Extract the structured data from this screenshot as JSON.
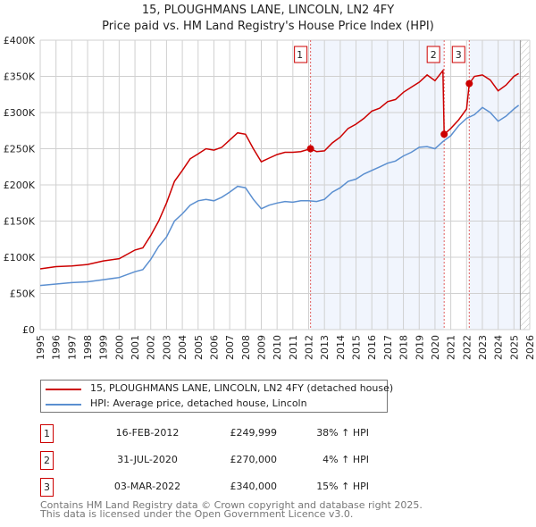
{
  "chart_data": {
    "type": "line",
    "title": "15, PLOUGHMANS LANE, LINCOLN, LN2 4FY",
    "subtitle": "Price paid vs. HM Land Registry's House Price Index (HPI)",
    "xlim": [
      1995,
      2026
    ],
    "ylim": [
      0,
      400000
    ],
    "x_ticks": [
      "1995",
      "1996",
      "1997",
      "1998",
      "1999",
      "2000",
      "2001",
      "2002",
      "2003",
      "2004",
      "2005",
      "2006",
      "2007",
      "2008",
      "2009",
      "2010",
      "2011",
      "2012",
      "2013",
      "2014",
      "2015",
      "2016",
      "2017",
      "2018",
      "2019",
      "2020",
      "2021",
      "2022",
      "2023",
      "2024",
      "2025",
      "2026"
    ],
    "y_ticks": [
      {
        "v": 0,
        "label": "£0"
      },
      {
        "v": 50000,
        "label": "£50K"
      },
      {
        "v": 100000,
        "label": "£100K"
      },
      {
        "v": 150000,
        "label": "£150K"
      },
      {
        "v": 200000,
        "label": "£200K"
      },
      {
        "v": 250000,
        "label": "£250K"
      },
      {
        "v": 300000,
        "label": "£300K"
      },
      {
        "v": 350000,
        "label": "£350K"
      },
      {
        "v": 400000,
        "label": "£400K"
      }
    ],
    "grid": true,
    "series": [
      {
        "name": "15, PLOUGHMANS LANE, LINCOLN, LN2 4FY (detached house)",
        "color": "#cc0000",
        "x": [
          1995,
          1996,
          1997,
          1998,
          1999,
          2000,
          2001,
          2001.5,
          2002,
          2002.5,
          2003,
          2003.5,
          2004,
          2004.5,
          2005,
          2005.5,
          2006,
          2006.5,
          2007,
          2007.5,
          2008,
          2008.5,
          2009,
          2009.5,
          2010,
          2010.5,
          2011,
          2011.5,
          2012.12,
          2012.5,
          2013,
          2013.5,
          2014,
          2014.5,
          2015,
          2015.5,
          2016,
          2016.5,
          2017,
          2017.5,
          2018,
          2018.5,
          2019,
          2019.5,
          2020,
          2020.5,
          2020.58,
          2021,
          2021.5,
          2022,
          2022.17,
          2022.5,
          2023,
          2023.5,
          2024,
          2024.5,
          2025,
          2025.3
        ],
        "y": [
          84000,
          87000,
          88000,
          90000,
          95000,
          98000,
          110000,
          113000,
          130000,
          150000,
          175000,
          205000,
          220000,
          236000,
          243000,
          250000,
          248000,
          252000,
          262000,
          272000,
          270000,
          250000,
          232000,
          237000,
          242000,
          245000,
          245000,
          246000,
          249999,
          246000,
          247000,
          258000,
          266000,
          278000,
          284000,
          292000,
          302000,
          306000,
          315000,
          318000,
          328000,
          335000,
          342000,
          352000,
          344000,
          358000,
          270000,
          278000,
          290000,
          305000,
          340000,
          350000,
          352000,
          345000,
          330000,
          338000,
          350000,
          354000
        ]
      },
      {
        "name": "HPI: Average price, detached house, Lincoln",
        "color": "#5b8fd0",
        "x": [
          1995,
          1996,
          1997,
          1998,
          1999,
          2000,
          2001,
          2001.5,
          2002,
          2002.5,
          2003,
          2003.5,
          2004,
          2004.5,
          2005,
          2005.5,
          2006,
          2006.5,
          2007,
          2007.5,
          2008,
          2008.5,
          2009,
          2009.5,
          2010,
          2010.5,
          2011,
          2011.5,
          2012,
          2012.5,
          2013,
          2013.5,
          2014,
          2014.5,
          2015,
          2015.5,
          2016,
          2016.5,
          2017,
          2017.5,
          2018,
          2018.5,
          2019,
          2019.5,
          2020,
          2020.5,
          2021,
          2021.5,
          2022,
          2022.5,
          2023,
          2023.5,
          2024,
          2024.5,
          2025,
          2025.3
        ],
        "y": [
          61000,
          63000,
          65000,
          66000,
          69000,
          72000,
          80000,
          83000,
          97000,
          115000,
          128000,
          150000,
          160000,
          172000,
          178000,
          180000,
          178000,
          183000,
          190000,
          198000,
          196000,
          180000,
          167000,
          172000,
          175000,
          177000,
          176000,
          178000,
          178000,
          177000,
          180000,
          190000,
          196000,
          205000,
          208000,
          215000,
          220000,
          225000,
          230000,
          233000,
          240000,
          245000,
          252000,
          253000,
          250000,
          260000,
          268000,
          282000,
          292000,
          297000,
          307000,
          300000,
          288000,
          295000,
          305000,
          310000
        ]
      }
    ],
    "sales": [
      {
        "label": "1",
        "x": 2012.12,
        "y": 249999,
        "date": "16-FEB-2012",
        "price": "£249,999",
        "hpi": "38% ↑ HPI"
      },
      {
        "label": "2",
        "x": 2020.58,
        "y": 270000,
        "date": "31-JUL-2020",
        "price": "£270,000",
        "hpi": " 4% ↑ HPI"
      },
      {
        "label": "3",
        "x": 2022.17,
        "y": 340000,
        "date": "03-MAR-2022",
        "price": "£340,000",
        "hpi": "15% ↑ HPI"
      }
    ],
    "shaded_ranges": [
      [
        2012.12,
        2020.58
      ],
      [
        2022.17,
        2025.4
      ]
    ],
    "forecast_start": 2025.4,
    "legend_placement": "below"
  },
  "footer": [
    "Contains HM Land Registry data © Crown copyright and database right 2025.",
    "This data is licensed under the Open Government Licence v3.0."
  ]
}
